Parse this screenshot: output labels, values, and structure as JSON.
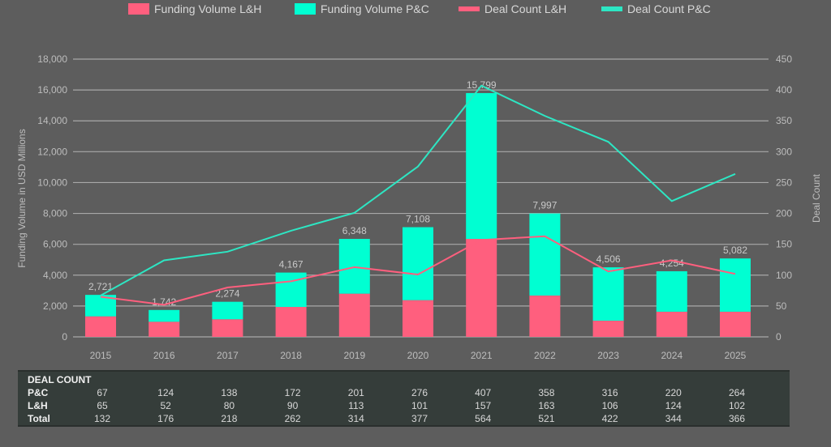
{
  "chart_data": {
    "type": "bar+line",
    "categories": [
      "2015",
      "2016",
      "2017",
      "2018",
      "2019",
      "2020",
      "2021",
      "2022",
      "2023",
      "2024",
      "2025"
    ],
    "legend_position": "top",
    "grid": true,
    "ylabel": "Funding Volume in USD Millions",
    "y2label": "Deal Count",
    "ylim": [
      0,
      18000
    ],
    "y2lim": [
      0,
      450
    ],
    "yticks": [
      "0",
      "2,000",
      "4,000",
      "6,000",
      "8,000",
      "10,000",
      "12,000",
      "14,000",
      "16,000",
      "18,000"
    ],
    "y2ticks": [
      "0",
      "50",
      "100",
      "150",
      "200",
      "250",
      "300",
      "350",
      "400",
      "450"
    ],
    "series": [
      {
        "name": "Funding Volume L&H",
        "type": "bar",
        "axis": "left",
        "color": "#ff5f7e",
        "values": [
          1330,
          980,
          1140,
          1940,
          2800,
          2380,
          6350,
          2680,
          1050,
          1630,
          1630
        ]
      },
      {
        "name": "Funding Volume P&C",
        "type": "bar",
        "axis": "left",
        "color": "#00ffd2",
        "values": [
          1391,
          762,
          1134,
          2227,
          3548,
          4728,
          9449,
          5317,
          3456,
          2624,
          3452
        ]
      },
      {
        "name": "Deal Count L&H",
        "type": "line",
        "axis": "right",
        "color": "#ff5f7e",
        "values": [
          65,
          52,
          80,
          90,
          113,
          101,
          157,
          163,
          106,
          124,
          102
        ]
      },
      {
        "name": "Deal Count P&C",
        "type": "line",
        "axis": "right",
        "color": "#2de6c3",
        "values": [
          67,
          124,
          138,
          172,
          201,
          276,
          407,
          358,
          316,
          220,
          264
        ]
      }
    ],
    "total_labels": [
      "2,721",
      "1,742",
      "2,274",
      "4,167",
      "6,348",
      "7,108",
      "15,799",
      "7,997",
      "4,506",
      "4,254",
      "5,082"
    ]
  },
  "table": {
    "title": "DEAL COUNT",
    "rows": [
      {
        "label": "P&C",
        "values": [
          "67",
          "124",
          "138",
          "172",
          "201",
          "276",
          "407",
          "358",
          "316",
          "220",
          "264"
        ]
      },
      {
        "label": "L&H",
        "values": [
          "65",
          "52",
          "80",
          "90",
          "113",
          "101",
          "157",
          "163",
          "106",
          "124",
          "102"
        ]
      },
      {
        "label": "Total",
        "values": [
          "132",
          "176",
          "218",
          "262",
          "314",
          "377",
          "564",
          "521",
          "422",
          "344",
          "366"
        ]
      }
    ]
  }
}
